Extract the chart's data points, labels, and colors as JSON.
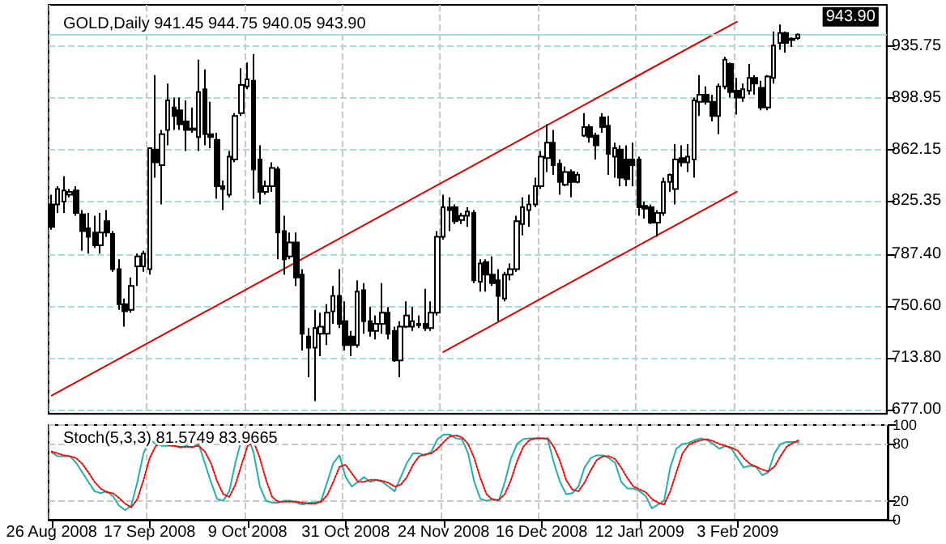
{
  "chart_data": [
    {
      "type": "candlestick",
      "title": "GOLD,Daily 941.45 944.75 940.05 943.90",
      "categories": [
        "26 Aug 2008",
        null,
        null,
        null,
        null,
        null,
        null,
        null,
        null,
        null,
        null,
        null,
        null,
        null,
        null,
        null,
        "17 Sep 2008",
        null,
        null,
        null,
        null,
        null,
        null,
        null,
        null,
        null,
        null,
        null,
        null,
        null,
        null,
        null,
        "9 Oct 2008",
        null,
        null,
        null,
        null,
        null,
        null,
        null,
        null,
        null,
        null,
        null,
        null,
        null,
        null,
        null,
        "31 Oct 2008",
        null,
        null,
        null,
        null,
        null,
        null,
        null,
        null,
        null,
        null,
        null,
        null,
        null,
        null,
        null,
        "24 Nov 2008",
        null,
        null,
        null,
        null,
        null,
        null,
        null,
        null,
        null,
        null,
        null,
        null,
        null,
        null,
        null,
        "16 Dec 2008",
        null,
        null,
        null,
        null,
        null,
        null,
        null,
        null,
        null,
        null,
        null,
        null,
        null,
        null,
        null,
        "12 Jan 2009",
        null,
        null,
        null,
        null,
        null,
        null,
        null,
        null,
        null,
        null,
        null,
        null,
        null,
        null,
        null,
        "3 Feb 2009",
        null,
        null,
        null,
        null,
        null,
        null,
        null,
        null,
        null,
        null,
        null,
        null,
        null,
        null,
        null,
        null,
        null,
        null,
        null,
        null,
        null,
        null,
        null,
        null
      ],
      "ohlc": [
        [
          823,
          830,
          805,
          807
        ],
        [
          823,
          836,
          817,
          834
        ],
        [
          825,
          843,
          817,
          833
        ],
        [
          830,
          834,
          828,
          832
        ],
        [
          833,
          836,
          815,
          817
        ],
        [
          816,
          819,
          790,
          804
        ],
        [
          806,
          817,
          788,
          800
        ],
        [
          803,
          815,
          792,
          794
        ],
        [
          794,
          817,
          788,
          803
        ],
        [
          811,
          819,
          800,
          803
        ],
        [
          802,
          804,
          775,
          777
        ],
        [
          777,
          784,
          748,
          752
        ],
        [
          752,
          756,
          736,
          747
        ],
        [
          748,
          771,
          746,
          765
        ],
        [
          779,
          788,
          765,
          786
        ],
        [
          779,
          790,
          775,
          788
        ],
        [
          777,
          863,
          773,
          863
        ],
        [
          862,
          915,
          842,
          853
        ],
        [
          851,
          876,
          823,
          873
        ],
        [
          876,
          909,
          865,
          897
        ],
        [
          892,
          899,
          876,
          886
        ],
        [
          890,
          899,
          876,
          880
        ],
        [
          882,
          897,
          861,
          876
        ],
        [
          877,
          892,
          874,
          876
        ],
        [
          871,
          926,
          861,
          903
        ],
        [
          905,
          919,
          865,
          873
        ],
        [
          873,
          896,
          863,
          871
        ],
        [
          869,
          874,
          827,
          836
        ],
        [
          836,
          840,
          819,
          834
        ],
        [
          830,
          861,
          828,
          857
        ],
        [
          855,
          888,
          853,
          886
        ],
        [
          888,
          920,
          886,
          908
        ],
        [
          907,
          924,
          905,
          912
        ],
        [
          911,
          930,
          827,
          848
        ],
        [
          855,
          865,
          823,
          832
        ],
        [
          832,
          840,
          830,
          836
        ],
        [
          836,
          853,
          832,
          849
        ],
        [
          848,
          850,
          784,
          803
        ],
        [
          804,
          815,
          773,
          784
        ],
        [
          786,
          803,
          784,
          796
        ],
        [
          796,
          803,
          765,
          771
        ],
        [
          773,
          777,
          719,
          731
        ],
        [
          729,
          735,
          700,
          721
        ],
        [
          721,
          748,
          683,
          735
        ],
        [
          731,
          746,
          715,
          736
        ],
        [
          731,
          752,
          723,
          746
        ],
        [
          747,
          765,
          738,
          758
        ],
        [
          758,
          777,
          735,
          738
        ],
        [
          740,
          754,
          719,
          723
        ],
        [
          729,
          733,
          715,
          723
        ],
        [
          723,
          769,
          721,
          761
        ],
        [
          762,
          767,
          731,
          740
        ],
        [
          740,
          750,
          729,
          733
        ],
        [
          733,
          744,
          727,
          738
        ],
        [
          738,
          767,
          731,
          746
        ],
        [
          746,
          750,
          727,
          731
        ],
        [
          733,
          736,
          711,
          712
        ],
        [
          712,
          740,
          700,
          736
        ],
        [
          736,
          754,
          735,
          744
        ],
        [
          736,
          750,
          733,
          740
        ],
        [
          738,
          744,
          735,
          737
        ],
        [
          738,
          763,
          733,
          735
        ],
        [
          735,
          754,
          733,
          746
        ],
        [
          746,
          804,
          744,
          800
        ],
        [
          800,
          830,
          798,
          821
        ],
        [
          821,
          828,
          804,
          819
        ],
        [
          821,
          823,
          809,
          811
        ],
        [
          812,
          817,
          809,
          815
        ],
        [
          815,
          821,
          807,
          818
        ],
        [
          817,
          819,
          767,
          769
        ],
        [
          768,
          784,
          761,
          781
        ],
        [
          782,
          784,
          761,
          773
        ],
        [
          773,
          786,
          765,
          767
        ],
        [
          769,
          777,
          740,
          758
        ],
        [
          756,
          775,
          754,
          773
        ],
        [
          773,
          781,
          769,
          777
        ],
        [
          777,
          815,
          775,
          811
        ],
        [
          809,
          828,
          801,
          821
        ],
        [
          819,
          830,
          807,
          823
        ],
        [
          823,
          842,
          821,
          836
        ],
        [
          836,
          861,
          834,
          857
        ],
        [
          856,
          880,
          846,
          867
        ],
        [
          867,
          876,
          844,
          851
        ],
        [
          852,
          855,
          830,
          839
        ],
        [
          837,
          850,
          836,
          846
        ],
        [
          846,
          848,
          828,
          839
        ],
        [
          839,
          846,
          838,
          844
        ],
        [
          872,
          888,
          871,
          878
        ],
        [
          878,
          880,
          867,
          871
        ],
        [
          872,
          874,
          855,
          865
        ],
        [
          885,
          888,
          874,
          878
        ],
        [
          879,
          886,
          844,
          859
        ],
        [
          857,
          867,
          842,
          863
        ],
        [
          862,
          865,
          836,
          842
        ],
        [
          855,
          865,
          836,
          841
        ],
        [
          855,
          867,
          836,
          851
        ],
        [
          855,
          857,
          815,
          821
        ],
        [
          822,
          825,
          813,
          820
        ],
        [
          821,
          823,
          809,
          810
        ],
        [
          810,
          819,
          800,
          817
        ],
        [
          817,
          842,
          815,
          839
        ],
        [
          839,
          845,
          832,
          844
        ],
        [
          834,
          866,
          823,
          855
        ],
        [
          856,
          865,
          850,
          853
        ],
        [
          853,
          866,
          846,
          857
        ],
        [
          855,
          899,
          842,
          897
        ],
        [
          896,
          915,
          886,
          901
        ],
        [
          901,
          907,
          894,
          896
        ],
        [
          896,
          901,
          882,
          886
        ],
        [
          886,
          909,
          873,
          907
        ],
        [
          907,
          928,
          905,
          926
        ],
        [
          923,
          924,
          899,
          903
        ],
        [
          904,
          913,
          887,
          899
        ],
        [
          899,
          909,
          896,
          905
        ],
        [
          904,
          923,
          901,
          913
        ],
        [
          913,
          915,
          901,
          909
        ],
        [
          906,
          911,
          890,
          892
        ],
        [
          892,
          915,
          890,
          914
        ],
        [
          913,
          946,
          909,
          936
        ],
        [
          938,
          951,
          933,
          945
        ],
        [
          945,
          946,
          931,
          938
        ],
        [
          941,
          942,
          935,
          940
        ],
        [
          941.45,
          944.75,
          940.05,
          943.9
        ],
        null,
        null,
        null,
        null,
        null,
        null,
        null,
        null,
        null,
        null,
        null,
        null,
        null,
        null
      ],
      "series": [
        {
          "type": "line",
          "color": "#dd0000",
          "x": [
            "26 Aug 2008",
            "3 Feb 2009"
          ],
          "values": [
            687,
            953
          ]
        },
        {
          "type": "line",
          "color": "#dd0000",
          "x": [
            "24 Nov 2008",
            "3 Feb 2009"
          ],
          "values": [
            718,
            832
          ]
        }
      ],
      "ylim": [
        674,
        965
      ],
      "yticks": [
        {
          "value": 677,
          "label": "677.00"
        },
        {
          "value": 713.8,
          "label": "713.80"
        },
        {
          "value": 750.6,
          "label": "750.60"
        },
        {
          "value": 787.4,
          "label": "787.40"
        },
        {
          "value": 825.35,
          "label": "825.35"
        },
        {
          "value": 862.15,
          "label": "862.15"
        },
        {
          "value": 898.95,
          "label": "898.95"
        },
        {
          "value": 935.75,
          "label": "935.75"
        }
      ],
      "ref_lines": [
        {
          "axis": "y",
          "value": 943.9,
          "label": "943.90",
          "color": "#9fe0e0"
        }
      ],
      "grid": true,
      "marker": "none",
      "tick_labels": "y"
    },
    {
      "type": "line",
      "title": "Stoch(5,3,3) 81.5749 83.9665",
      "categories": [
        "26 Aug 2008",
        null,
        null,
        null,
        null,
        null,
        null,
        null,
        null,
        null,
        null,
        null,
        null,
        null,
        null,
        null,
        "17 Sep 2008",
        null,
        null,
        null,
        null,
        null,
        null,
        null,
        null,
        null,
        null,
        null,
        null,
        null,
        null,
        null,
        "9 Oct 2008",
        null,
        null,
        null,
        null,
        null,
        null,
        null,
        null,
        null,
        null,
        null,
        null,
        null,
        null,
        null,
        "31 Oct 2008",
        null,
        null,
        null,
        null,
        null,
        null,
        null,
        null,
        null,
        null,
        null,
        null,
        null,
        null,
        null,
        "24 Nov 2008",
        null,
        null,
        null,
        null,
        null,
        null,
        null,
        null,
        null,
        null,
        null,
        null,
        null,
        null,
        null,
        "16 Dec 2008",
        null,
        null,
        null,
        null,
        null,
        null,
        null,
        null,
        null,
        null,
        null,
        null,
        null,
        null,
        null,
        "12 Jan 2009",
        null,
        null,
        null,
        null,
        null,
        null,
        null,
        null,
        null,
        null,
        null,
        null,
        null,
        null,
        null,
        "3 Feb 2009",
        null,
        null,
        null,
        null,
        null,
        null,
        null,
        null,
        null,
        null,
        null,
        null,
        null,
        null,
        null,
        null,
        null,
        null,
        null,
        null,
        null,
        null,
        null,
        null
      ],
      "series": [
        {
          "color": "#20b2aa",
          "line_style": "solid",
          "values": [
            71,
            67,
            67,
            67,
            60,
            50,
            40,
            30,
            28,
            30,
            25,
            15,
            10,
            15,
            40,
            70,
            85,
            80,
            78,
            78,
            78,
            76,
            78,
            76,
            80,
            60,
            40,
            22,
            20,
            30,
            60,
            85,
            90,
            70,
            35,
            20,
            18,
            18,
            20,
            20,
            18,
            16,
            18,
            18,
            20,
            40,
            60,
            68,
            45,
            35,
            40,
            45,
            40,
            42,
            40,
            35,
            30,
            45,
            60,
            70,
            70,
            68,
            72,
            85,
            90,
            90,
            86,
            85,
            70,
            40,
            22,
            20,
            22,
            20,
            40,
            65,
            80,
            85,
            86,
            86,
            86,
            85,
            60,
            40,
            27,
            28,
            35,
            55,
            65,
            68,
            68,
            65,
            60,
            40,
            33,
            33,
            30,
            25,
            12,
            16,
            20,
            55,
            75,
            80,
            81,
            84,
            86,
            84,
            80,
            75,
            78,
            75,
            65,
            55,
            57,
            56,
            47,
            50,
            70,
            80,
            82,
            82,
            81.5749,
            null,
            null,
            null,
            null,
            null,
            null,
            null,
            null,
            null,
            null,
            null,
            null,
            null,
            null
          ]
        },
        {
          "color": "#ff0000",
          "line_style": "dotted",
          "values": [
            72,
            70,
            68,
            67,
            65,
            59,
            50,
            40,
            33,
            29,
            28,
            23,
            17,
            13,
            22,
            42,
            65,
            78,
            81,
            79,
            78,
            77,
            77,
            77,
            78,
            72,
            60,
            41,
            27,
            24,
            37,
            58,
            78,
            82,
            65,
            42,
            24,
            19,
            19,
            19,
            19,
            18,
            17,
            17,
            19,
            26,
            40,
            56,
            58,
            49,
            40,
            40,
            42,
            42,
            41,
            39,
            35,
            37,
            45,
            58,
            67,
            69,
            70,
            75,
            82,
            88,
            89,
            87,
            80,
            65,
            44,
            27,
            21,
            21,
            27,
            42,
            62,
            77,
            84,
            86,
            86,
            86,
            77,
            62,
            42,
            32,
            30,
            39,
            52,
            63,
            67,
            67,
            64,
            55,
            44,
            35,
            32,
            29,
            22,
            18,
            16,
            30,
            50,
            70,
            79,
            82,
            84,
            85,
            83,
            80,
            78,
            76,
            73,
            65,
            59,
            56,
            53,
            51,
            56,
            67,
            77,
            81,
            83.9665,
            null,
            null,
            null,
            null,
            null,
            null,
            null,
            null,
            null,
            null,
            null,
            null,
            null,
            null
          ]
        }
      ],
      "ylim": [
        0,
        100
      ],
      "yticks": [
        0,
        20,
        80,
        100
      ],
      "grid": true,
      "marker": "none"
    }
  ]
}
